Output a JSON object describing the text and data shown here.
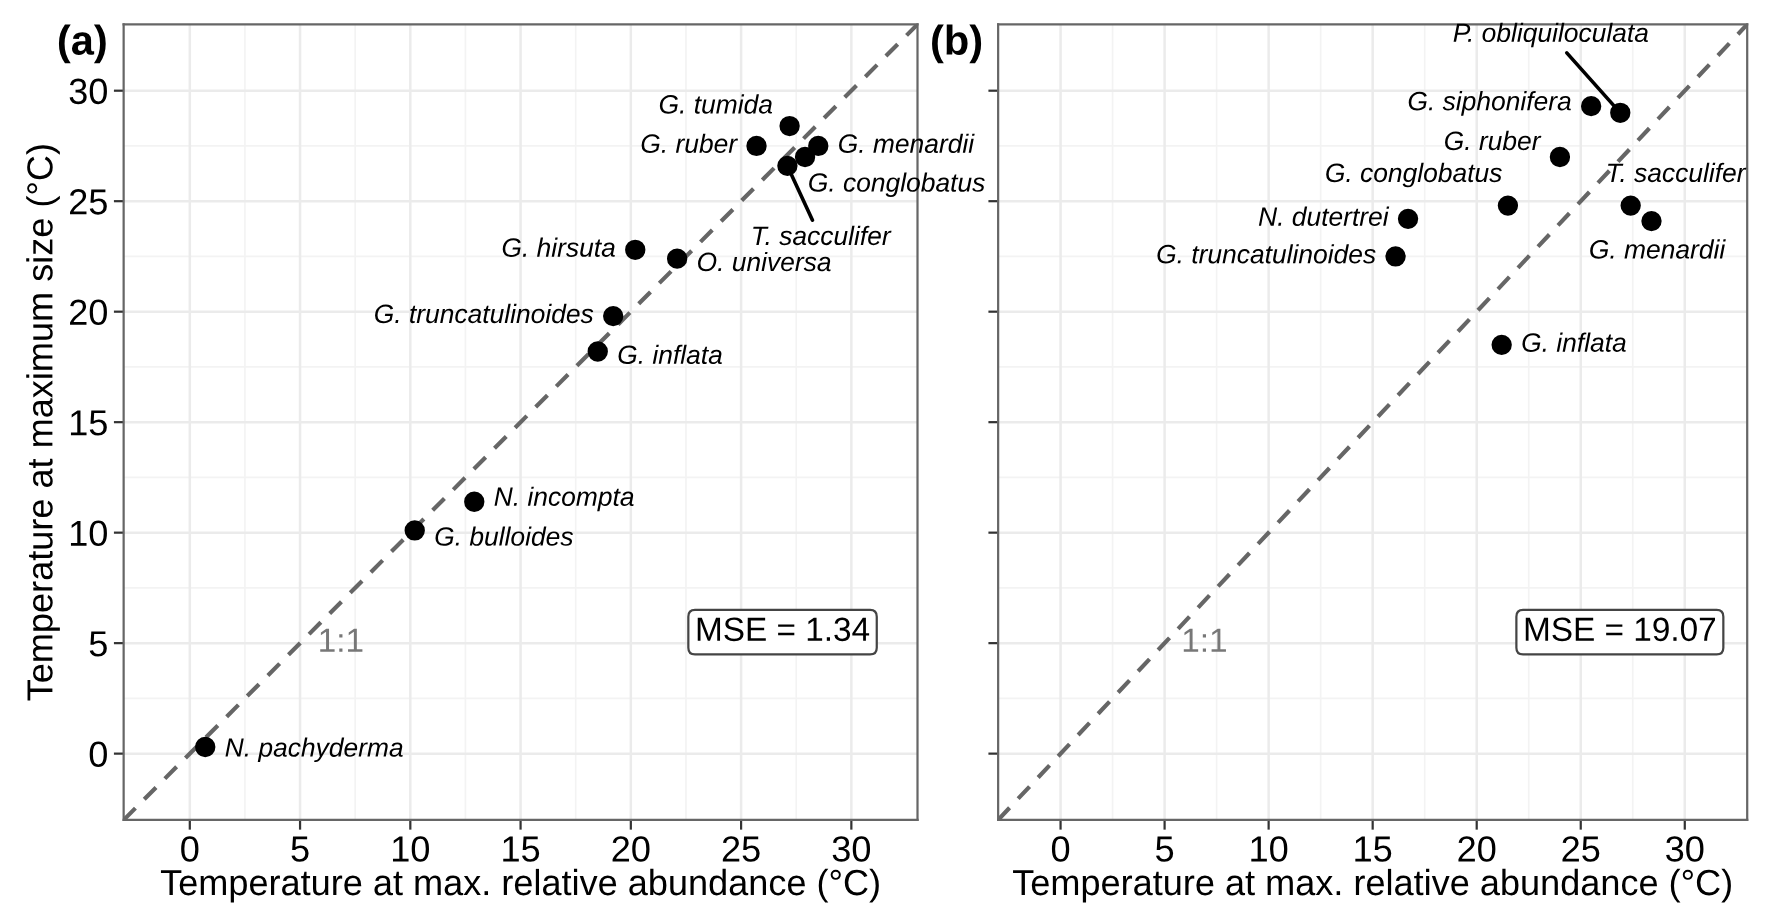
{
  "chart_data": [
    {
      "type": "scatter",
      "title": "(a)",
      "xlabel": "Temperature at max. relative abundance (°C)",
      "ylabel": "Temperature at maximum size (°C)",
      "xlim": [
        -3,
        33
      ],
      "ylim": [
        -3,
        33
      ],
      "xticks": [
        0,
        5,
        10,
        15,
        20,
        25,
        30
      ],
      "yticks": [
        0,
        5,
        10,
        15,
        20,
        25,
        30
      ],
      "grid": true,
      "marker": "circle",
      "series": [
        {
          "type": "line",
          "color": "#666666",
          "line_style": "dashed",
          "marker": "none",
          "x": [
            -3,
            33
          ],
          "values": [
            -3,
            33
          ]
        },
        {
          "color": "#000000",
          "x": [
            27.2,
            25.7,
            28.5,
            27.9,
            27.1,
            20.2,
            22.1,
            19.2,
            18.5,
            12.9,
            10.2,
            0.7
          ],
          "values": [
            28.4,
            27.5,
            27.5,
            27.0,
            26.6,
            22.8,
            22.4,
            19.8,
            18.2,
            11.4,
            10.1,
            0.3
          ]
        }
      ],
      "annotations": [
        {
          "text": "G. tumida",
          "x": 27.2,
          "y": 28.4
        },
        {
          "text": "G. ruber",
          "x": 25.7,
          "y": 27.5
        },
        {
          "text": "G. menardii",
          "x": 28.5,
          "y": 27.5
        },
        {
          "text": "G. conglobatus",
          "x": 27.9,
          "y": 27.0
        },
        {
          "text": "T. sacculifer",
          "x": 27.1,
          "y": 26.6
        },
        {
          "text": "G. hirsuta",
          "x": 20.2,
          "y": 22.8
        },
        {
          "text": "O. universa",
          "x": 22.1,
          "y": 22.4
        },
        {
          "text": "G. truncatulinoides",
          "x": 19.2,
          "y": 19.8
        },
        {
          "text": "G. inflata",
          "x": 18.5,
          "y": 18.2
        },
        {
          "text": "N. incompta",
          "x": 12.9,
          "y": 11.4
        },
        {
          "text": "G. bulloides",
          "x": 10.2,
          "y": 10.1
        },
        {
          "text": "N. pachyderma",
          "x": 0.7,
          "y": 0.3
        },
        {
          "text": "1:1",
          "x": 5,
          "y": 5
        },
        "MSE = 1.34"
      ]
    },
    {
      "type": "scatter",
      "title": "(b)",
      "xlabel": "Temperature at max. relative abundance (°C)",
      "xlim": [
        -3,
        33
      ],
      "ylim": [
        -3,
        33
      ],
      "xticks": [
        0,
        5,
        10,
        15,
        20,
        25,
        30
      ],
      "yticks": [
        0,
        5,
        10,
        15,
        20,
        25,
        30
      ],
      "tick_labels": "x",
      "grid": true,
      "marker": "circle",
      "series": [
        {
          "type": "line",
          "color": "#666666",
          "line_style": "dashed",
          "marker": "none",
          "x": [
            -3,
            33
          ],
          "values": [
            -3,
            33
          ]
        },
        {
          "color": "#000000",
          "x": [
            26.9,
            25.5,
            24.0,
            21.5,
            16.7,
            16.1,
            27.4,
            28.4,
            21.2
          ],
          "values": [
            29.0,
            29.3,
            27.0,
            24.8,
            24.2,
            22.5,
            24.8,
            24.1,
            18.5
          ]
        }
      ],
      "annotations": [
        {
          "text": "P. obliquiloculata",
          "x": 26.9,
          "y": 29.0
        },
        {
          "text": "G. siphonifera",
          "x": 25.5,
          "y": 29.3
        },
        {
          "text": "G. ruber",
          "x": 24.0,
          "y": 27.0
        },
        {
          "text": "G. conglobatus",
          "x": 21.5,
          "y": 24.8
        },
        {
          "text": "N. dutertrei",
          "x": 16.7,
          "y": 24.2
        },
        {
          "text": "G. truncatulinoides",
          "x": 16.1,
          "y": 22.5
        },
        {
          "text": "T. sacculifer",
          "x": 27.4,
          "y": 24.8
        },
        {
          "text": "G. menardii",
          "x": 28.4,
          "y": 24.1
        },
        {
          "text": "G. inflata",
          "x": 21.2,
          "y": 18.5
        },
        {
          "text": "1:1",
          "x": 5,
          "y": 5
        },
        "MSE = 19.07"
      ]
    }
  ]
}
